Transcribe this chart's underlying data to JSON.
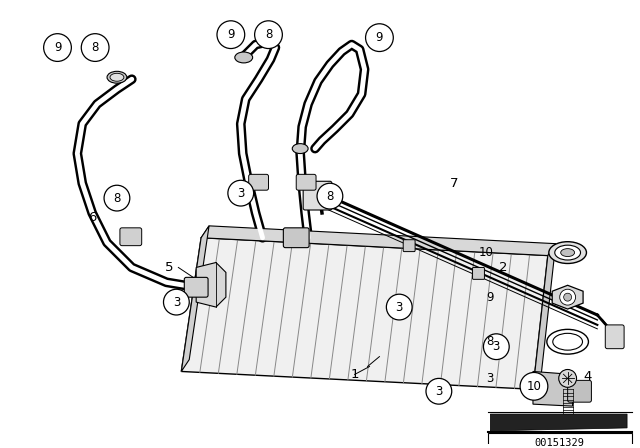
{
  "background_color": "#ffffff",
  "fig_width": 6.4,
  "fig_height": 4.48,
  "dpi": 100,
  "diagram_id": "00151329",
  "line_color": "#000000"
}
